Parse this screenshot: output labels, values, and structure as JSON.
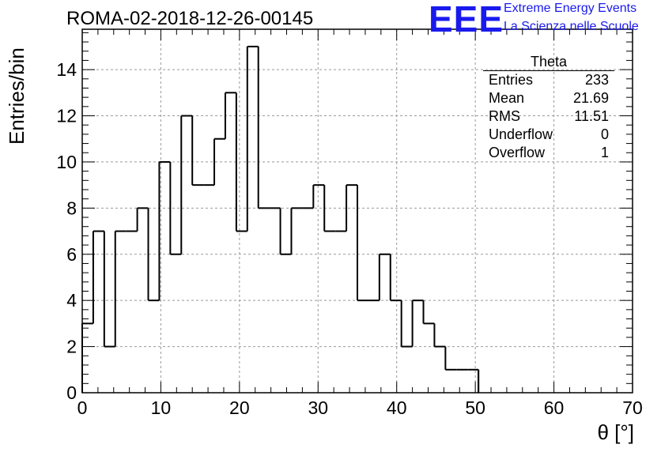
{
  "header": {
    "run_title": "ROMA-02-2018-12-26-00145",
    "logo_text": "EEE",
    "logo_line1": "Extreme Energy Events",
    "logo_line2": "La Scienza nelle Scuole",
    "logo_color": "#1a1aee"
  },
  "stats_box": {
    "title": "Theta",
    "rows": [
      {
        "label": "Entries",
        "value": "233"
      },
      {
        "label": "Mean",
        "value": "21.69"
      },
      {
        "label": "RMS",
        "value": "11.51"
      },
      {
        "label": "Underflow",
        "value": "0"
      },
      {
        "label": "Overflow",
        "value": "1"
      }
    ]
  },
  "chart_data": {
    "type": "bar",
    "style": "step-histogram",
    "title": "",
    "xlabel": "θ [°]",
    "ylabel": "Entries/bin",
    "xlim": [
      0,
      70
    ],
    "ylim": [
      0,
      15.75
    ],
    "x_ticks": [
      "0",
      "10",
      "20",
      "30",
      "40",
      "50",
      "60",
      "70"
    ],
    "y_ticks": [
      "0",
      "2",
      "4",
      "6",
      "8",
      "10",
      "12",
      "14"
    ],
    "grid": true,
    "bin_width": 1.4,
    "bin_start": 0,
    "values": [
      3,
      7,
      2,
      7,
      7,
      8,
      4,
      10,
      6,
      12,
      9,
      9,
      11,
      13,
      7,
      15,
      8,
      8,
      6,
      8,
      8,
      9,
      7,
      7,
      9,
      4,
      4,
      6,
      4,
      2,
      4,
      3,
      2,
      1,
      1,
      1,
      0,
      0,
      0,
      0,
      0,
      0,
      0,
      0,
      0,
      0,
      0,
      0,
      0,
      0
    ],
    "line_color": "#000000",
    "grid_color": "#999999"
  }
}
